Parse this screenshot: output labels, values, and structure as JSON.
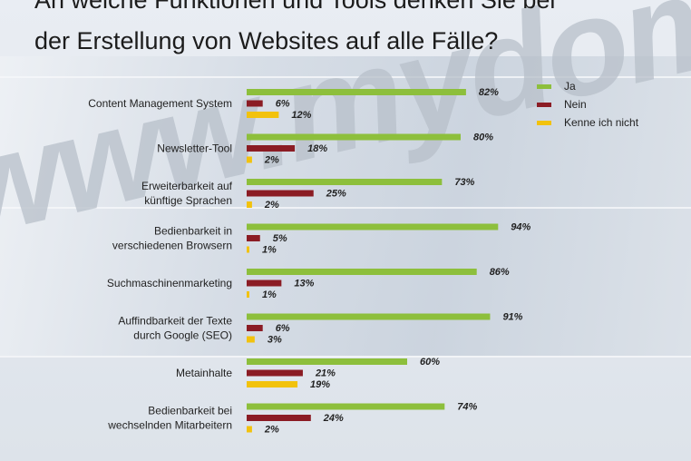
{
  "title_line1": "An welche Funktionen und Tools denken Sie bei",
  "title_line2": "der Erstellung von Websites auf alle Fälle?",
  "watermark": "www.mydomain.com",
  "chart_data": {
    "type": "bar",
    "orientation": "horizontal",
    "categories": [
      "Content Management System",
      "Newsletter-Tool",
      "Erweiterbarkeit auf künftige Sprachen",
      "Bedienbarkeit in verschiedenen Browsern",
      "Suchmaschinenmarketing",
      "Auffindbarkeit der Texte durch Google (SEO)",
      "Metainhalte",
      "Bedienbarkeit bei wechselnden Mitarbeitern"
    ],
    "category_lines": [
      [
        "Content Management System"
      ],
      [
        "Newsletter-Tool"
      ],
      [
        "Erweiterbarkeit auf",
        "künftige Sprachen"
      ],
      [
        "Bedienbarkeit in",
        "verschiedenen Browsern"
      ],
      [
        "Suchmaschinenmarketing"
      ],
      [
        "Auffindbarkeit der Texte",
        "durch Google (SEO)"
      ],
      [
        "Metainhalte"
      ],
      [
        "Bedienbarkeit bei",
        "wechselnden Mitarbeitern"
      ]
    ],
    "series": [
      {
        "name": "Ja",
        "color": "#8dbf3c",
        "values": [
          82,
          80,
          73,
          94,
          86,
          91,
          60,
          74
        ]
      },
      {
        "name": "Nein",
        "color": "#8b1c24",
        "values": [
          6,
          18,
          25,
          5,
          13,
          6,
          21,
          24
        ]
      },
      {
        "name": "Kenne ich nicht",
        "color": "#f2c20d",
        "values": [
          12,
          2,
          2,
          1,
          1,
          3,
          19,
          2
        ]
      }
    ],
    "value_suffix": "%",
    "xlim": [
      0,
      100
    ],
    "legend_position": "top-right",
    "grid": false
  }
}
